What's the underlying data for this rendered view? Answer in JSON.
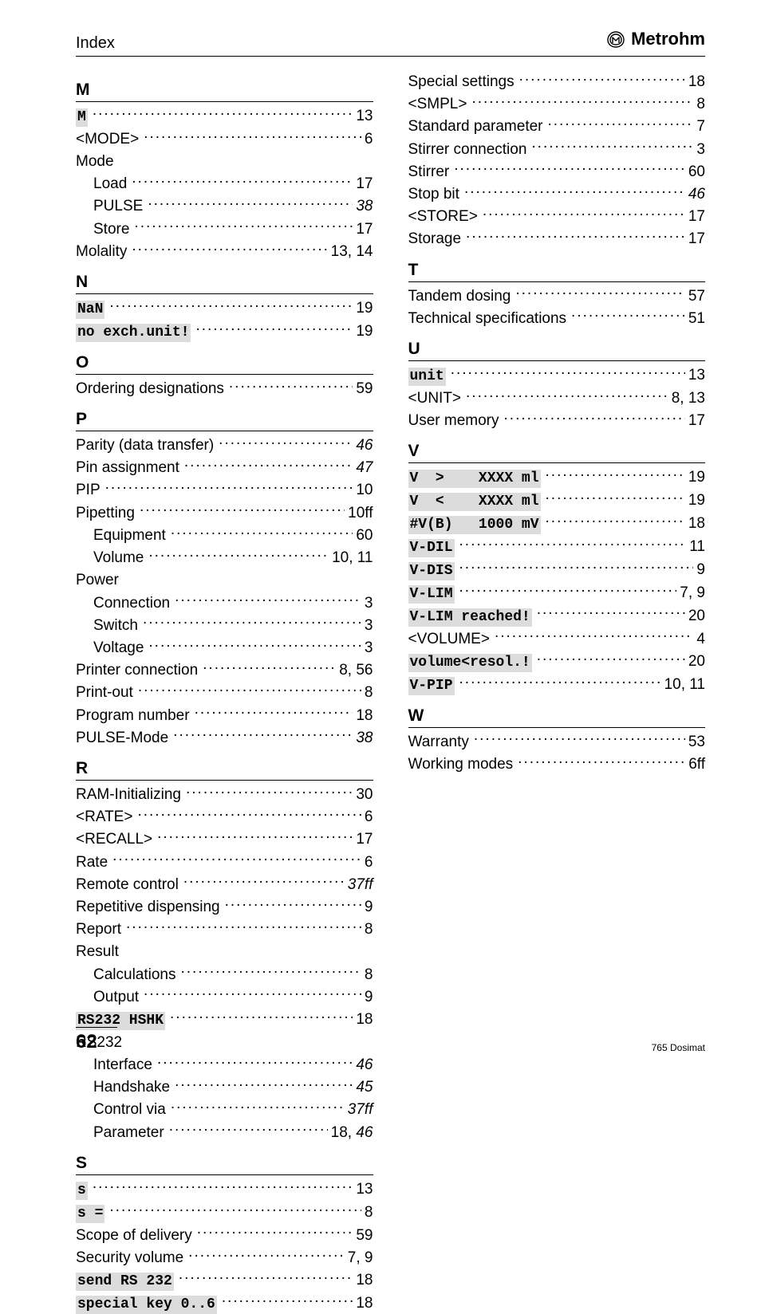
{
  "colors": {
    "background": "#ffffff",
    "text": "#000000",
    "mono_bg": "#dcdcdc",
    "rule": "#000000"
  },
  "typography": {
    "body_font": "Arial",
    "body_size_pt": 14,
    "mono_font": "Courier New",
    "mono_size_pt": 13,
    "letter_heading_size_pt": 16,
    "letter_heading_weight": "bold"
  },
  "header": {
    "left": "Index",
    "brand": "Metrohm"
  },
  "footer": {
    "page_number": "62",
    "doc_name": "765 Dosimat"
  },
  "left_col": [
    {
      "type": "letter",
      "text": "M"
    },
    {
      "type": "entry",
      "label": "M",
      "mono": true,
      "page": "13"
    },
    {
      "type": "entry",
      "label": "<MODE>",
      "page": "6"
    },
    {
      "type": "entry",
      "label": "Mode",
      "noleader": true
    },
    {
      "type": "entry",
      "label": "Load",
      "page": "17",
      "sub": 1
    },
    {
      "type": "entry",
      "label": "PULSE",
      "page": "38",
      "italic": true,
      "sub": 1
    },
    {
      "type": "entry",
      "label": "Store",
      "page": "17",
      "sub": 1
    },
    {
      "type": "entry",
      "label": "Molality",
      "page": "13, 14"
    },
    {
      "type": "letter",
      "text": "N"
    },
    {
      "type": "entry",
      "label": "NaN",
      "mono": true,
      "page": "19"
    },
    {
      "type": "entry",
      "label": "no exch.unit!",
      "mono": true,
      "page": "19"
    },
    {
      "type": "letter",
      "text": "O"
    },
    {
      "type": "entry",
      "label": "Ordering designations",
      "page": "59"
    },
    {
      "type": "letter",
      "text": "P"
    },
    {
      "type": "entry",
      "label": "Parity (data transfer)",
      "page": "46",
      "italic": true
    },
    {
      "type": "entry",
      "label": "Pin assignment",
      "page": "47",
      "italic": true
    },
    {
      "type": "entry",
      "label": "PIP",
      "page": "10"
    },
    {
      "type": "entry",
      "label": "Pipetting",
      "page": "10ff"
    },
    {
      "type": "entry",
      "label": "Equipment",
      "page": "60",
      "sub": 1
    },
    {
      "type": "entry",
      "label": "Volume",
      "page": "10, 11",
      "sub": 1
    },
    {
      "type": "entry",
      "label": "Power",
      "noleader": true
    },
    {
      "type": "entry",
      "label": "Connection",
      "page": "3",
      "sub": 1
    },
    {
      "type": "entry",
      "label": "Switch",
      "page": "3",
      "sub": 1
    },
    {
      "type": "entry",
      "label": "Voltage",
      "page": "3",
      "sub": 1
    },
    {
      "type": "entry",
      "label": "Printer connection",
      "page": "8, 56"
    },
    {
      "type": "entry",
      "label": "Print-out",
      "page": "8"
    },
    {
      "type": "entry",
      "label": "Program number",
      "page": "18"
    },
    {
      "type": "entry",
      "label": "PULSE-Mode",
      "page": "38",
      "italic": true
    },
    {
      "type": "letter",
      "text": "R"
    },
    {
      "type": "entry",
      "label": "RAM-Initializing",
      "page": "30"
    },
    {
      "type": "entry",
      "label": "<RATE>",
      "page": "6"
    },
    {
      "type": "entry",
      "label": "<RECALL>",
      "page": "17"
    },
    {
      "type": "entry",
      "label": "Rate",
      "page": "6"
    },
    {
      "type": "entry",
      "label": "Remote control",
      "page": "37ff",
      "italic": true
    },
    {
      "type": "entry",
      "label": "Repetitive dispensing",
      "page": "9"
    },
    {
      "type": "entry",
      "label": "Report",
      "page": "8"
    },
    {
      "type": "entry",
      "label": "Result",
      "noleader": true
    },
    {
      "type": "entry",
      "label": "Calculations",
      "page": "8",
      "sub": 1
    },
    {
      "type": "entry",
      "label": "Output",
      "page": "9",
      "sub": 1
    },
    {
      "type": "entry",
      "label": "RS232 HSHK",
      "mono": true,
      "page": "18"
    },
    {
      "type": "entry",
      "label": "RS232",
      "noleader": true
    },
    {
      "type": "entry",
      "label": "Interface",
      "page": "46",
      "italic": true,
      "sub": 1
    },
    {
      "type": "entry",
      "label": "Handshake",
      "page": "45",
      "italic": true,
      "sub": 1
    },
    {
      "type": "entry",
      "label": "Control via",
      "page": "37ff",
      "italic": true,
      "sub": 1
    },
    {
      "type": "entry",
      "label": "Parameter",
      "page": "18, 46",
      "mixitalic": true,
      "sub": 1
    },
    {
      "type": "letter",
      "text": "S"
    },
    {
      "type": "entry",
      "label": "s",
      "mono": true,
      "page": "13"
    },
    {
      "type": "entry",
      "label": "s =",
      "mono": true,
      "page": "8"
    },
    {
      "type": "entry",
      "label": "Scope of delivery",
      "page": "59"
    },
    {
      "type": "entry",
      "label": "Security volume",
      "page": "7, 9"
    },
    {
      "type": "entry",
      "label": "send RS 232",
      "mono": true,
      "page": "18"
    },
    {
      "type": "entry",
      "label": "special key 0..6",
      "mono": true,
      "page": "18"
    }
  ],
  "right_col": [
    {
      "type": "entry",
      "label": "Special settings",
      "page": "18"
    },
    {
      "type": "entry",
      "label": "<SMPL>",
      "page": "8"
    },
    {
      "type": "entry",
      "label": "Standard parameter",
      "page": "7"
    },
    {
      "type": "entry",
      "label": "Stirrer connection",
      "page": "3"
    },
    {
      "type": "entry",
      "label": "Stirrer",
      "page": "60"
    },
    {
      "type": "entry",
      "label": "Stop bit",
      "page": "46",
      "italic": true
    },
    {
      "type": "entry",
      "label": "<STORE>",
      "page": "17"
    },
    {
      "type": "entry",
      "label": "Storage",
      "page": "17"
    },
    {
      "type": "letter",
      "text": "T"
    },
    {
      "type": "entry",
      "label": "Tandem dosing",
      "page": "57"
    },
    {
      "type": "entry",
      "label": "Technical specifications",
      "page": "51"
    },
    {
      "type": "letter",
      "text": "U"
    },
    {
      "type": "entry",
      "label": "unit",
      "mono": true,
      "page": "13"
    },
    {
      "type": "entry",
      "label": "<UNIT>",
      "page": "8, 13"
    },
    {
      "type": "entry",
      "label": "User memory",
      "page": "17"
    },
    {
      "type": "letter",
      "text": "V"
    },
    {
      "type": "entry",
      "label": "V  >    XXXX ml",
      "mono": true,
      "page": "19"
    },
    {
      "type": "entry",
      "label": "V  <    XXXX ml",
      "mono": true,
      "page": "19"
    },
    {
      "type": "entry",
      "label": "#V(B)   1000 mV",
      "mono": true,
      "page": "18"
    },
    {
      "type": "entry",
      "label": "V-DIL",
      "mono": true,
      "page": "11"
    },
    {
      "type": "entry",
      "label": "V-DIS",
      "mono": true,
      "page": "9"
    },
    {
      "type": "entry",
      "label": "V-LIM",
      "mono": true,
      "page": "7, 9"
    },
    {
      "type": "entry",
      "label": "V-LIM reached!",
      "mono": true,
      "page": "20"
    },
    {
      "type": "entry",
      "label": "<VOLUME>",
      "page": "4"
    },
    {
      "type": "entry",
      "label": "volume<resol.!",
      "mono": true,
      "page": "20"
    },
    {
      "type": "entry",
      "label": "V-PIP",
      "mono": true,
      "page": "10, 11"
    },
    {
      "type": "letter",
      "text": "W"
    },
    {
      "type": "entry",
      "label": "Warranty",
      "page": "53"
    },
    {
      "type": "entry",
      "label": "Working modes",
      "page": "6ff"
    }
  ]
}
